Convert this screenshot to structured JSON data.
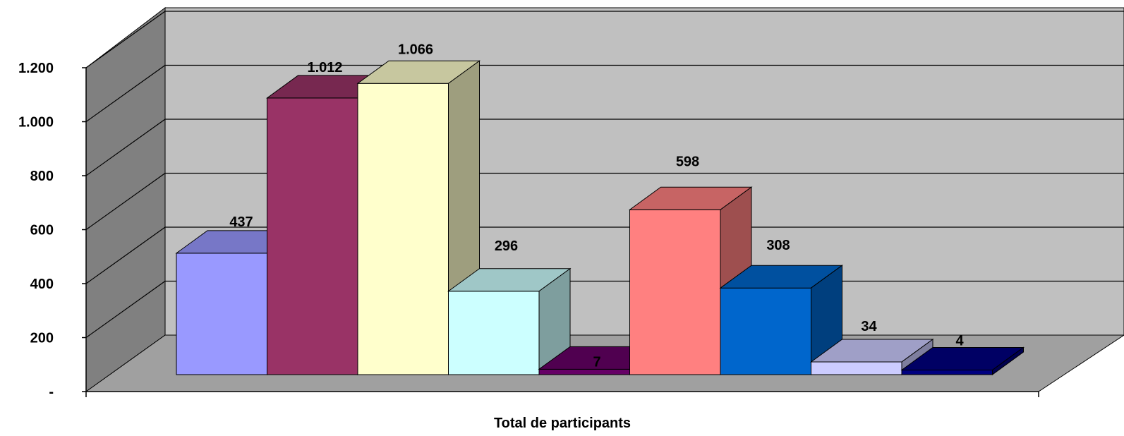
{
  "chart_data": {
    "type": "bar",
    "style": "3d-column",
    "xlabel": "Total de participants",
    "ylabel": "",
    "ylim": [
      0,
      1200
    ],
    "ytick_values": [
      0,
      200,
      400,
      600,
      800,
      1000,
      1200
    ],
    "ytick_labels": [
      "-",
      "200",
      "400",
      "600",
      "800",
      "1.000",
      "1.200"
    ],
    "grid": true,
    "legend": "none",
    "series": [
      {
        "value": 437,
        "label": "437",
        "color": "#9999FF"
      },
      {
        "value": 1012,
        "label": "1.012",
        "color": "#993366"
      },
      {
        "value": 1066,
        "label": "1.066",
        "color": "#FFFFCC"
      },
      {
        "value": 296,
        "label": "296",
        "color": "#CCFFFF"
      },
      {
        "value": 7,
        "label": "7",
        "color": "#660066"
      },
      {
        "value": 598,
        "label": "598",
        "color": "#FF8080"
      },
      {
        "value": 308,
        "label": "308",
        "color": "#0066CC"
      },
      {
        "value": 34,
        "label": "34",
        "color": "#CCCCFF"
      },
      {
        "value": 4,
        "label": "4",
        "color": "#000080"
      }
    ],
    "colors": {
      "wall": "#C0C0C0",
      "side_wall": "#808080",
      "floor": "#A0A0A0",
      "gridline": "#000000"
    }
  }
}
